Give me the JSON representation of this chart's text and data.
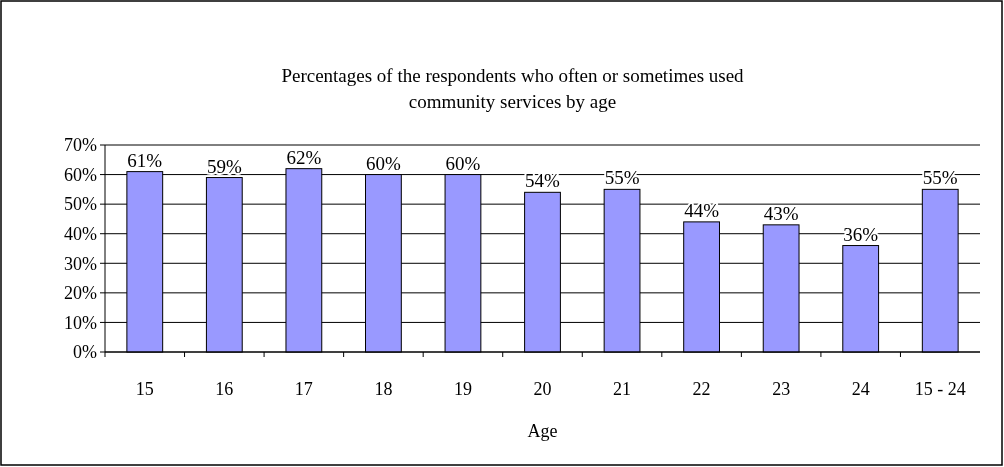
{
  "chart_data": {
    "type": "bar",
    "title": "Percentages of the respondents who often or sometimes used community services by age",
    "xlabel": "Age",
    "categories": [
      "15",
      "16",
      "17",
      "18",
      "19",
      "20",
      "21",
      "22",
      "23",
      "24",
      "15 - 24"
    ],
    "values": [
      61,
      59,
      62,
      60,
      60,
      54,
      55,
      44,
      43,
      36,
      55
    ],
    "value_labels": [
      "61%",
      "59%",
      "62%",
      "60%",
      "60%",
      "54%",
      "55%",
      "44%",
      "43%",
      "36%",
      "55%"
    ],
    "color": "#9999ff",
    "ylim": [
      0,
      70
    ],
    "yticks": [
      {
        "value": 0,
        "label": "0%"
      },
      {
        "value": 10,
        "label": "10%"
      },
      {
        "value": 20,
        "label": "20%"
      },
      {
        "value": 30,
        "label": "30%"
      },
      {
        "value": 40,
        "label": "40%"
      },
      {
        "value": 50,
        "label": "50%"
      },
      {
        "value": 60,
        "label": "60%"
      },
      {
        "value": 70,
        "label": "70%"
      }
    ],
    "grid": "y"
  }
}
